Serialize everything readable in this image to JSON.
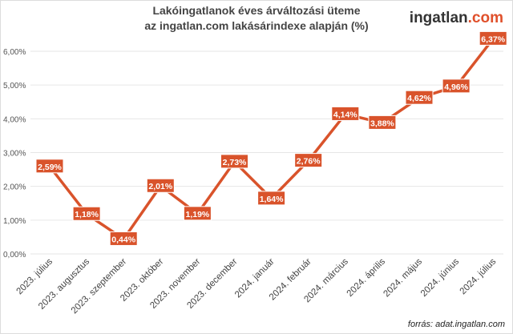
{
  "title_line1": "Lakóingatlanok éves árváltozási üteme",
  "title_line2": "az ingatlan.com lakásárindexe alapján (%)",
  "logo": {
    "text": "ingatlan",
    "suffix": ".com"
  },
  "source": "forrás: adat.ingatlan.com",
  "colors": {
    "line": "#d9532b",
    "label_bg": "#d9532b",
    "label_text": "#ffffff",
    "grid": "#e6e6e6"
  },
  "chart_data": {
    "type": "line",
    "categories": [
      "2023. július",
      "2023. augusztus",
      "2023. szeptember",
      "2023. október",
      "2023. november",
      "2023. december",
      "2024. január",
      "2024. február",
      "2024. március",
      "2024. április",
      "2024. május",
      "2024. június",
      "2024. július"
    ],
    "values": [
      2.59,
      1.18,
      0.44,
      2.01,
      1.19,
      2.73,
      1.64,
      2.76,
      4.14,
      3.88,
      4.62,
      4.96,
      6.37
    ],
    "data_labels": [
      "2,59%",
      "1,18%",
      "0,44%",
      "2,01%",
      "1,19%",
      "2,73%",
      "1,64%",
      "2,76%",
      "4,14%",
      "3,88%",
      "4,62%",
      "4,96%",
      "6,37%"
    ],
    "y_ticks": [
      0,
      1,
      2,
      3,
      4,
      5,
      6
    ],
    "y_tick_labels": [
      "0,00%",
      "1,00%",
      "2,00%",
      "3,00%",
      "4,00%",
      "5,00%",
      "6,00%"
    ],
    "ylim": [
      0,
      6
    ],
    "grid": true,
    "legend": "none"
  }
}
